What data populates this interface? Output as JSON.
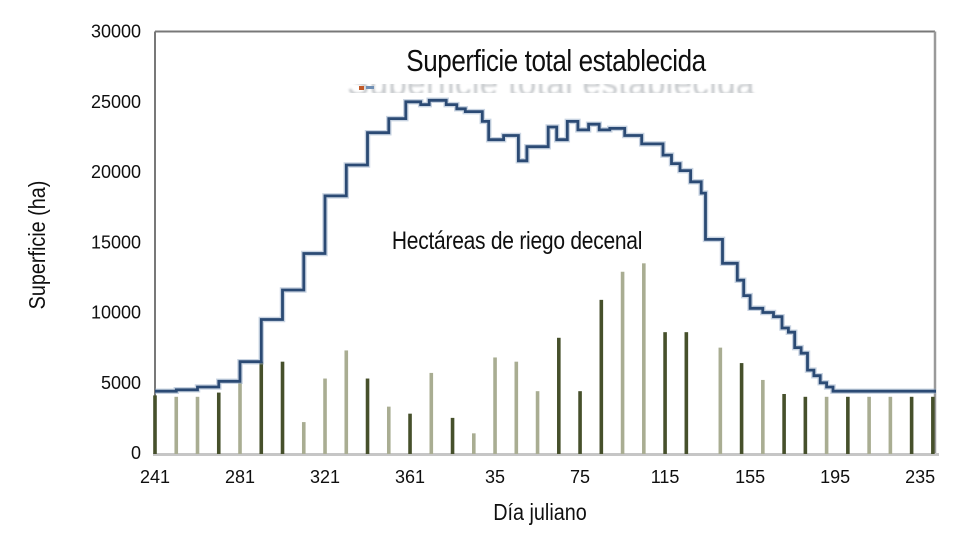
{
  "figure": {
    "line_annotation": "Superficie total establecida",
    "ghost_annotation": "Superficie total establecida",
    "bars_annotation": "Hectáreas de riego decenal",
    "y_axis_title": "Superficie (ha)",
    "x_axis_title": "Día juliano"
  },
  "colors": {
    "line": "#2b4a74",
    "line_halo": "#93a9c6",
    "bar_dark": "#46502b",
    "bar_light": "#a9ad92",
    "axis_dark": "#787878",
    "axis_light": "#c6c6c6",
    "ghost_text": "#c6c9cc",
    "ghost_dot_orange": "#c25a28",
    "ghost_dot_blue": "#6f8fb4",
    "tick_text": "#0f0f0f"
  },
  "chart_data": {
    "type": "combo: step line + bar",
    "title": "Superficie total establecida",
    "xlabel": "Día juliano",
    "ylabel": "Superficie (ha)",
    "x_range_julian_relative": [
      241,
      608
    ],
    "ylim": [
      0,
      30000
    ],
    "grid": false,
    "legend_position": "none (in-plot text annotations)",
    "y_ticks": [
      0,
      5000,
      10000,
      15000,
      20000,
      25000,
      30000
    ],
    "x_ticks": [
      {
        "pos": 241,
        "label": "241"
      },
      {
        "pos": 281,
        "label": "281"
      },
      {
        "pos": 321,
        "label": "321"
      },
      {
        "pos": 361,
        "label": "361"
      },
      {
        "pos": 401,
        "label": "35"
      },
      {
        "pos": 441,
        "label": "75"
      },
      {
        "pos": 481,
        "label": "115"
      },
      {
        "pos": 521,
        "label": "155"
      },
      {
        "pos": 561,
        "label": "195"
      },
      {
        "pos": 601,
        "label": "235"
      }
    ],
    "line_series": {
      "name": "Superficie total establecida",
      "style": "step-after",
      "points": [
        [
          241,
          4400
        ],
        [
          251,
          4500
        ],
        [
          261,
          4700
        ],
        [
          271,
          5100
        ],
        [
          281,
          6500
        ],
        [
          291,
          9500
        ],
        [
          301,
          11600
        ],
        [
          311,
          14200
        ],
        [
          321,
          18300
        ],
        [
          331,
          20500
        ],
        [
          341,
          22800
        ],
        [
          351,
          23800
        ],
        [
          359,
          25000
        ],
        [
          366,
          24800
        ],
        [
          370,
          25100
        ],
        [
          378,
          24800
        ],
        [
          383,
          24500
        ],
        [
          387,
          24300
        ],
        [
          395,
          23600
        ],
        [
          398,
          22300
        ],
        [
          405,
          22600
        ],
        [
          412,
          20800
        ],
        [
          416,
          21800
        ],
        [
          426,
          23200
        ],
        [
          430,
          22300
        ],
        [
          435,
          23600
        ],
        [
          440,
          23000
        ],
        [
          445,
          23400
        ],
        [
          450,
          23000
        ],
        [
          455,
          23100
        ],
        [
          462,
          22600
        ],
        [
          470,
          22000
        ],
        [
          480,
          21200
        ],
        [
          484,
          20600
        ],
        [
          488,
          20100
        ],
        [
          493,
          19300
        ],
        [
          498,
          18500
        ],
        [
          500,
          15200
        ],
        [
          508,
          13500
        ],
        [
          515,
          12300
        ],
        [
          518,
          11200
        ],
        [
          521,
          10300
        ],
        [
          527,
          10000
        ],
        [
          532,
          9700
        ],
        [
          536,
          8900
        ],
        [
          539,
          8600
        ],
        [
          542,
          7500
        ],
        [
          545,
          7100
        ],
        [
          548,
          5900
        ],
        [
          551,
          5500
        ],
        [
          554,
          5000
        ],
        [
          557,
          4700
        ],
        [
          560,
          4400
        ],
        [
          608,
          4400
        ]
      ]
    },
    "bar_series": {
      "name": "Hectáreas de riego decenal",
      "interval_days": 10,
      "points": [
        [
          241,
          4100,
          "dark"
        ],
        [
          251,
          4000,
          "light"
        ],
        [
          261,
          4000,
          "light"
        ],
        [
          271,
          4300,
          "dark"
        ],
        [
          281,
          5000,
          "light"
        ],
        [
          291,
          6500,
          "dark"
        ],
        [
          301,
          6500,
          "dark"
        ],
        [
          311,
          2200,
          "light"
        ],
        [
          321,
          5300,
          "light"
        ],
        [
          331,
          7300,
          "light"
        ],
        [
          341,
          5300,
          "dark"
        ],
        [
          351,
          3300,
          "light"
        ],
        [
          361,
          2800,
          "dark"
        ],
        [
          371,
          5700,
          "light"
        ],
        [
          381,
          2500,
          "dark"
        ],
        [
          391,
          1400,
          "light"
        ],
        [
          401,
          6800,
          "light"
        ],
        [
          411,
          6500,
          "light"
        ],
        [
          421,
          4400,
          "light"
        ],
        [
          431,
          8200,
          "dark"
        ],
        [
          441,
          4400,
          "dark"
        ],
        [
          451,
          10900,
          "dark"
        ],
        [
          461,
          12900,
          "light"
        ],
        [
          471,
          13500,
          "light"
        ],
        [
          481,
          8600,
          "dark"
        ],
        [
          491,
          8600,
          "dark"
        ],
        [
          507,
          7500,
          "light"
        ],
        [
          517,
          6400,
          "dark"
        ],
        [
          527,
          5200,
          "light"
        ],
        [
          537,
          4200,
          "dark"
        ],
        [
          547,
          4000,
          "dark"
        ],
        [
          557,
          4000,
          "light"
        ],
        [
          567,
          4000,
          "dark"
        ],
        [
          577,
          4000,
          "light"
        ],
        [
          587,
          4000,
          "light"
        ],
        [
          597,
          4000,
          "dark"
        ],
        [
          607,
          4000,
          "dark"
        ]
      ]
    }
  }
}
